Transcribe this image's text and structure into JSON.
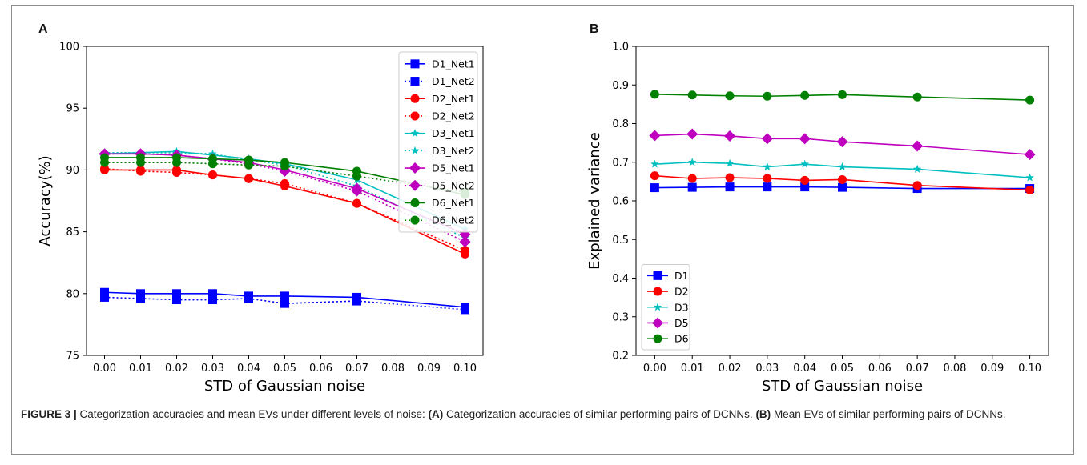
{
  "panels": [
    {
      "letter": "A"
    },
    {
      "letter": "B"
    }
  ],
  "chart_data": [
    {
      "type": "line",
      "xlabel": "STD of Gaussian noise",
      "ylabel": "Accuracy(%)",
      "xlim": [
        -0.005,
        0.105
      ],
      "ylim": [
        75,
        100
      ],
      "xticks": [
        "0.00",
        "0.01",
        "0.02",
        "0.03",
        "0.04",
        "0.05",
        "0.06",
        "0.07",
        "0.08",
        "0.09",
        "0.10"
      ],
      "yticks": [
        "75",
        "80",
        "85",
        "90",
        "95",
        "100"
      ],
      "grid": false,
      "legend_position": "top-right",
      "x": [
        0.0,
        0.01,
        0.02,
        0.03,
        0.04,
        0.05,
        0.07,
        0.1
      ],
      "series": [
        {
          "name": "D1_Net1",
          "color": "#0000ff",
          "style": "solid",
          "marker": "square",
          "values": [
            80.1,
            80.0,
            80.0,
            80.0,
            79.8,
            79.8,
            79.7,
            78.9
          ]
        },
        {
          "name": "D1_Net2",
          "color": "#0000ff",
          "style": "dotted",
          "marker": "square",
          "values": [
            79.7,
            79.6,
            79.5,
            79.5,
            79.6,
            79.2,
            79.4,
            78.7
          ]
        },
        {
          "name": "D2_Net1",
          "color": "#ff0000",
          "style": "solid",
          "marker": "circle",
          "values": [
            90.0,
            90.0,
            90.0,
            89.6,
            89.3,
            88.7,
            87.3,
            83.2
          ]
        },
        {
          "name": "D2_Net2",
          "color": "#ff0000",
          "style": "dotted",
          "marker": "circle",
          "values": [
            90.1,
            89.9,
            89.8,
            89.6,
            89.3,
            88.9,
            87.3,
            83.5
          ]
        },
        {
          "name": "D3_Net1",
          "color": "#00bfbf",
          "style": "solid",
          "marker": "star",
          "values": [
            91.3,
            91.4,
            91.5,
            91.2,
            90.9,
            90.5,
            89.2,
            85.2
          ]
        },
        {
          "name": "D3_Net2",
          "color": "#00bfbf",
          "style": "dotted",
          "marker": "star",
          "values": [
            91.4,
            91.4,
            91.4,
            91.3,
            90.8,
            90.4,
            88.7,
            84.5
          ]
        },
        {
          "name": "D5_Net1",
          "color": "#bf00bf",
          "style": "solid",
          "marker": "diamond",
          "values": [
            91.3,
            91.3,
            91.2,
            90.9,
            90.6,
            90.0,
            88.5,
            84.8
          ]
        },
        {
          "name": "D5_Net2",
          "color": "#bf00bf",
          "style": "dotted",
          "marker": "diamond",
          "values": [
            91.3,
            91.3,
            91.2,
            90.9,
            90.5,
            89.9,
            88.3,
            84.2
          ]
        },
        {
          "name": "D6_Net1",
          "color": "#008000",
          "style": "solid",
          "marker": "circle",
          "values": [
            91.0,
            91.0,
            91.0,
            90.9,
            90.8,
            90.6,
            89.9,
            88.0
          ]
        },
        {
          "name": "D6_Net2",
          "color": "#008000",
          "style": "dotted",
          "marker": "circle",
          "values": [
            90.6,
            90.6,
            90.6,
            90.5,
            90.4,
            90.3,
            89.5,
            88.2
          ]
        }
      ]
    },
    {
      "type": "line",
      "xlabel": "STD of Gaussian noise",
      "ylabel": "Explained variance",
      "xlim": [
        -0.005,
        0.105
      ],
      "ylim": [
        0.2,
        1.0
      ],
      "xticks": [
        "0.00",
        "0.01",
        "0.02",
        "0.03",
        "0.04",
        "0.05",
        "0.06",
        "0.07",
        "0.08",
        "0.09",
        "0.10"
      ],
      "yticks": [
        "0.2",
        "0.3",
        "0.4",
        "0.5",
        "0.6",
        "0.7",
        "0.8",
        "0.9",
        "1.0"
      ],
      "grid": false,
      "legend_position": "bottom-left",
      "x": [
        0.0,
        0.01,
        0.02,
        0.03,
        0.04,
        0.05,
        0.07,
        0.1
      ],
      "series": [
        {
          "name": "D1",
          "color": "#0000ff",
          "style": "solid",
          "marker": "square",
          "values": [
            0.634,
            0.635,
            0.636,
            0.636,
            0.636,
            0.635,
            0.632,
            0.632
          ]
        },
        {
          "name": "D2",
          "color": "#ff0000",
          "style": "solid",
          "marker": "circle",
          "values": [
            0.665,
            0.658,
            0.66,
            0.658,
            0.653,
            0.655,
            0.64,
            0.628
          ]
        },
        {
          "name": "D3",
          "color": "#00bfbf",
          "style": "solid",
          "marker": "star",
          "values": [
            0.695,
            0.7,
            0.697,
            0.688,
            0.695,
            0.688,
            0.682,
            0.66
          ]
        },
        {
          "name": "D5",
          "color": "#bf00bf",
          "style": "solid",
          "marker": "diamond",
          "values": [
            0.769,
            0.773,
            0.768,
            0.761,
            0.761,
            0.753,
            0.742,
            0.72
          ]
        },
        {
          "name": "D6",
          "color": "#008000",
          "style": "solid",
          "marker": "circle",
          "values": [
            0.876,
            0.874,
            0.872,
            0.871,
            0.873,
            0.875,
            0.869,
            0.861
          ]
        }
      ]
    }
  ],
  "caption": {
    "label": "FIGURE 3 |",
    "intro": " Categorization accuracies and mean EVs under different levels of noise: ",
    "a_ref": "(A)",
    "a_text": " Categorization accuracies of similar performing pairs of DCNNs. ",
    "b_ref": "(B)",
    "b_text": " Mean EVs of similar performing pairs of DCNNs."
  }
}
